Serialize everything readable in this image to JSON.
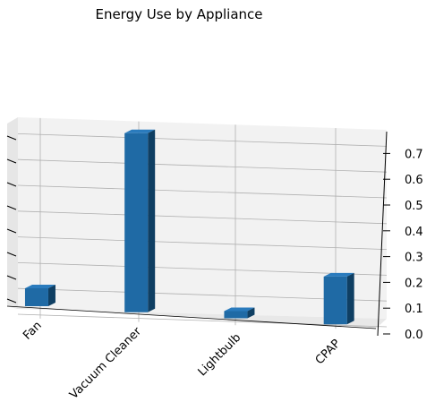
{
  "chart_data": {
    "type": "bar",
    "title": "Energy Use by Appliance",
    "categories": [
      "Fan",
      "Vacuum Cleaner",
      "Lightbulb",
      "CPAP"
    ],
    "values": [
      0.075,
      0.75,
      0.03,
      0.2
    ],
    "zlim": [
      0.0,
      0.75
    ],
    "zticks": [
      "0.0",
      "0.1",
      "0.2",
      "0.3",
      "0.4",
      "0.5",
      "0.6",
      "0.7"
    ],
    "projection": "3d",
    "grid": true,
    "colors": {
      "bar_front": "#1f6aa5",
      "bar_top": "#2a7bbd",
      "bar_side": "#0f3f63",
      "pane": "#f2f2f2",
      "grid": "#b0b0b0"
    }
  }
}
